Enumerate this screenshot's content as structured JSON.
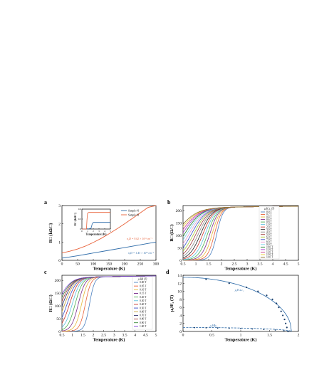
{
  "chart_data": [
    {
      "panel": "a",
      "type": "line",
      "xlabel": "Temperature (K)",
      "ylabel": "R□ (kΩ/□)",
      "xlim": [
        0,
        300
      ],
      "ylim": [
        0,
        3
      ],
      "xticks": [
        "0",
        "50",
        "100",
        "150",
        "200",
        "250",
        "300"
      ],
      "yticks": [
        "0",
        "1",
        "2",
        "3"
      ],
      "series": [
        {
          "name": "Sample #1",
          "color": "#2c6aa8",
          "x": [
            0,
            50,
            100,
            150,
            200,
            250,
            300
          ],
          "y": [
            0.12,
            0.25,
            0.4,
            0.55,
            0.7,
            0.85,
            1.0
          ]
        },
        {
          "name": "Sample #2",
          "color": "#e8623a",
          "x": [
            0,
            25,
            50,
            75,
            100,
            125,
            150,
            175,
            200,
            225,
            250,
            275,
            300
          ],
          "y": [
            0.4,
            0.5,
            0.62,
            0.78,
            0.98,
            1.2,
            1.45,
            1.72,
            2.0,
            2.3,
            2.6,
            2.9,
            3.15
          ]
        }
      ],
      "annotations": {
        "n2": "n₂D = 9.02 × 10¹³ cm⁻²",
        "n1": "n₂D = 1.43 × 10¹³ cm⁻²"
      },
      "inset": {
        "xlabel": "Temperature (K)",
        "ylabel": "R□ (kΩ/□)",
        "xlim": [
          0,
          5
        ],
        "ylim": [
          0,
          0.6
        ],
        "xticks": [
          "0",
          "1",
          "2",
          "3",
          "4",
          "5"
        ],
        "yticks": [
          "0",
          "0.3",
          "0.6"
        ],
        "series": [
          {
            "name": "Sample #1",
            "color": "#2c6aa8",
            "x": [
              0,
              1.0,
              1.6,
              1.8,
              2.0,
              3.0,
              5.0
            ],
            "y": [
              0,
              0,
              0.02,
              0.15,
              0.2,
              0.2,
              0.2
            ]
          },
          {
            "name": "Sample #2",
            "color": "#e8623a",
            "x": [
              0,
              0.8,
              0.9,
              1.0,
              1.2,
              2.0,
              5.0
            ],
            "y": [
              0,
              0,
              0.3,
              0.48,
              0.5,
              0.5,
              0.5
            ]
          }
        ]
      }
    },
    {
      "panel": "b",
      "type": "line",
      "xlabel": "Temperature (K)",
      "ylabel": "R□ (Ω/□)",
      "xlim": [
        0.5,
        5
      ],
      "ylim": [
        0,
        220
      ],
      "xticks": [
        "0.5",
        "1",
        "1.5",
        "2",
        "2.5",
        "3",
        "3.5",
        "4",
        "4.5",
        "5"
      ],
      "yticks": [
        "0",
        "50",
        "100",
        "150",
        "200"
      ],
      "legend_title": "μ₀H⊥ (T)",
      "legend_position": "top-right",
      "series": [
        {
          "name": "0.0 T",
          "color": "#4a7fbf",
          "tc": 1.82
        },
        {
          "name": "0.2 T",
          "color": "#e8623a",
          "tc": 1.73
        },
        {
          "name": "0.4 T",
          "color": "#e6b83a",
          "tc": 1.64
        },
        {
          "name": "0.6 T",
          "color": "#7b2d8e",
          "tc": 1.55
        },
        {
          "name": "0.8 T",
          "color": "#4caf50",
          "tc": 1.46
        },
        {
          "name": "1.0 T",
          "color": "#5bc0de",
          "tc": 1.37
        },
        {
          "name": "2.0 T",
          "color": "#c9342a",
          "tc": 1.28
        },
        {
          "name": "3.0 T",
          "color": "#222222",
          "tc": 1.19
        },
        {
          "name": "4.0 T",
          "color": "#8a8a8a",
          "tc": 1.1
        },
        {
          "name": "5.0 T",
          "color": "#9e3a3a",
          "tc": 1.01
        },
        {
          "name": "6.0 T",
          "color": "#a6c93a",
          "tc": 0.92
        },
        {
          "name": "7.0 T",
          "color": "#3a4fc9",
          "tc": 0.83
        },
        {
          "name": "8.0 T",
          "color": "#e89ad0",
          "tc": 0.74
        },
        {
          "name": "9.0 T",
          "color": "#7ad1e8",
          "tc": 0.65
        },
        {
          "name": "10.0 T",
          "color": "#1a7a2a",
          "tc": 0.56
        },
        {
          "name": "11.0 T",
          "color": "#a63ad1",
          "tc": 0.47
        },
        {
          "name": "12.0 T",
          "color": "#c93a8a",
          "tc": 0.38
        },
        {
          "name": "13.0 T",
          "color": "#e8d23a",
          "tc": 0.29
        },
        {
          "name": "14.0 T",
          "color": "#8a6a2a",
          "tc": 0.2
        }
      ]
    },
    {
      "panel": "c",
      "type": "line",
      "xlabel": "Temperature (K)",
      "ylabel": "R□ (Ω/□)",
      "xlim": [
        0.5,
        5
      ],
      "ylim": [
        0,
        220
      ],
      "xticks": [
        "0.5",
        "1",
        "1.5",
        "2",
        "2.5",
        "3",
        "3.5",
        "4",
        "4.5",
        "5"
      ],
      "yticks": [
        "0",
        "50",
        "100",
        "150",
        "200"
      ],
      "legend_title": "μ₀H∥ (T)",
      "legend_position": "top-right",
      "series": [
        {
          "name": "0.00 T",
          "color": "#4a7fbf",
          "tc": 1.82
        },
        {
          "name": "0.05 T",
          "color": "#e8623a",
          "tc": 1.62
        },
        {
          "name": "0.10 T",
          "color": "#e6b83a",
          "tc": 1.44
        },
        {
          "name": "0.15 T",
          "color": "#7b2d8e",
          "tc": 1.28
        },
        {
          "name": "0.20 T",
          "color": "#4caf50",
          "tc": 1.13
        },
        {
          "name": "0.30 T",
          "color": "#5bc0de",
          "tc": 0.99
        },
        {
          "name": "0.40 T",
          "color": "#c9342a",
          "tc": 0.86
        },
        {
          "name": "0.50 T",
          "color": "#3a4fc9",
          "tc": 0.74
        },
        {
          "name": "0.60 T",
          "color": "#c9a23a",
          "tc": 0.63
        },
        {
          "name": "0.70 T",
          "color": "#2a2a6a",
          "tc": 0.53
        },
        {
          "name": "0.80 T",
          "color": "#a63a3a",
          "tc": 0.44
        },
        {
          "name": "0.90 T",
          "color": "#3a8a3a",
          "tc": 0.35
        },
        {
          "name": "1.00 T",
          "color": "#7a3ad1",
          "tc": 0.27
        }
      ]
    },
    {
      "panel": "d",
      "type": "scatter",
      "xlabel": "Temperature (K)",
      "ylabel": "μ₀Hᶜ₂ (T)",
      "xlim": [
        0,
        2
      ],
      "ylim": [
        0,
        14
      ],
      "xticks": [
        "0",
        "0.5",
        "1",
        "1.5",
        "2"
      ],
      "yticks": [
        "0",
        "2",
        "4",
        "6",
        "8",
        "10",
        "12",
        "14"
      ],
      "series": [
        {
          "name": "μ₀H⊥c₂",
          "color": "#2c6aa8",
          "style": "solid",
          "x": [
            1.82,
            1.8,
            1.78,
            1.76,
            1.73,
            1.7,
            1.66,
            1.62,
            1.55,
            1.45,
            1.3,
            1.1,
            0.8,
            0.4
          ],
          "y": [
            0.0,
            1.0,
            2.0,
            3.0,
            4.0,
            5.0,
            6.0,
            7.0,
            8.0,
            9.0,
            10.0,
            11.0,
            12.0,
            13.0
          ]
        },
        {
          "name": "μ₀H∥c₂",
          "color": "#2c6aa8",
          "style": "dashed",
          "x": [
            0.2,
            0.4,
            0.6,
            0.8,
            1.0,
            1.2,
            1.4,
            1.6,
            1.75,
            1.82
          ],
          "y": [
            0.95,
            0.9,
            0.85,
            0.8,
            0.72,
            0.62,
            0.5,
            0.35,
            0.18,
            0.0
          ]
        }
      ],
      "labels": {
        "perp": "μ₀H⊥c₂",
        "par": "μ₀H∥c₂"
      }
    }
  ]
}
